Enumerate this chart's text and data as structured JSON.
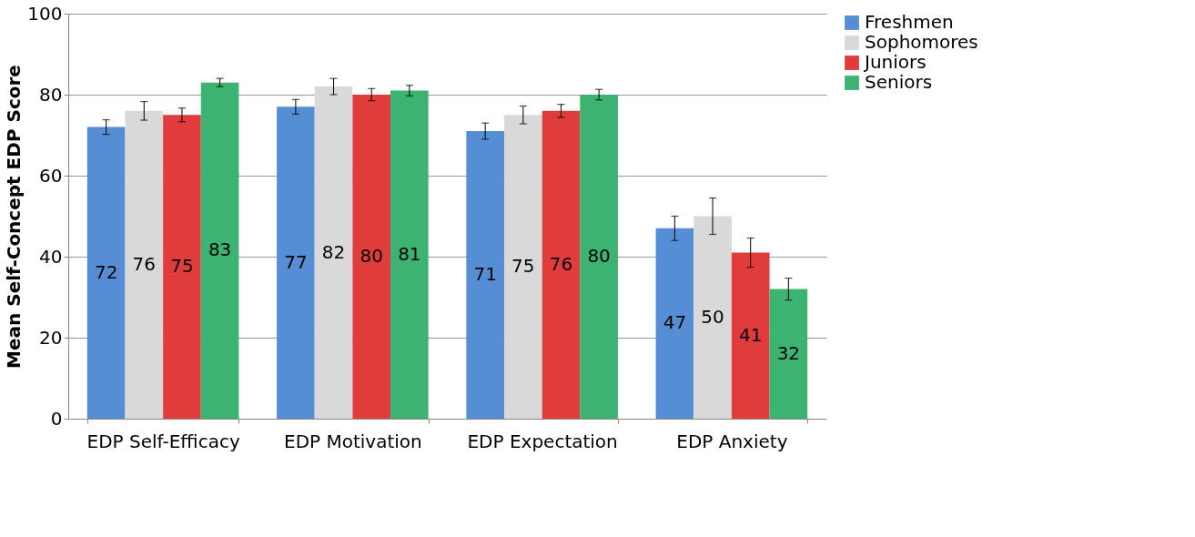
{
  "chart_data": {
    "type": "bar",
    "ylabel": "Mean Self-Concept EDP Score",
    "categories": [
      "EDP Self-Efficacy",
      "EDP Motivation",
      "EDP Expectation",
      "EDP Anxiety"
    ],
    "series": [
      {
        "name": "Freshmen",
        "color": "#558ed5",
        "values": [
          72,
          77,
          71,
          47
        ],
        "errors": [
          1.8,
          1.8,
          2,
          3
        ]
      },
      {
        "name": "Sophomores",
        "color": "#d9d9d9",
        "values": [
          76,
          82,
          75,
          50
        ],
        "errors": [
          2.3,
          2,
          2.2,
          4.5
        ]
      },
      {
        "name": "Juniors",
        "color": "#e03c3c",
        "values": [
          75,
          80,
          76,
          41
        ],
        "errors": [
          1.7,
          1.5,
          1.6,
          3.6
        ]
      },
      {
        "name": "Seniors",
        "color": "#3cb371",
        "values": [
          83,
          81,
          80,
          32
        ],
        "errors": [
          1,
          1.3,
          1.3,
          2.7
        ]
      }
    ],
    "ylim": [
      0,
      100
    ],
    "yticks": [
      0,
      20,
      40,
      60,
      80,
      100
    ],
    "grid": "y",
    "legend": "right",
    "data_labels": true
  }
}
